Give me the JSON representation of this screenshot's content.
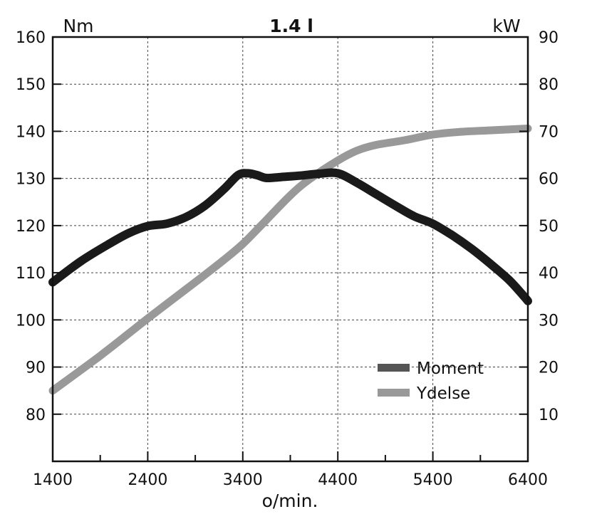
{
  "chart_data": {
    "type": "line",
    "title": "1.4 l",
    "xlabel": "o/min.",
    "ylabel_left": "Nm",
    "ylabel_right": "kW",
    "xlim": [
      1400,
      6400
    ],
    "ylim_left": [
      70,
      160
    ],
    "ylim_right": [
      0,
      90
    ],
    "x_ticks": [
      1400,
      2400,
      3400,
      4400,
      5400,
      6400
    ],
    "x_minor_ticks": [
      1900,
      2900,
      3900,
      4900,
      5900
    ],
    "y_ticks_left": [
      80,
      90,
      100,
      110,
      120,
      130,
      140,
      150,
      160
    ],
    "y_ticks_right": [
      10,
      20,
      30,
      40,
      50,
      60,
      70,
      80,
      90
    ],
    "grid": true,
    "legend_position": "lower-right",
    "series": [
      {
        "name": "Moment",
        "axis": "left",
        "color": "#1a1a1a",
        "legend_color": "#555555",
        "points": [
          [
            1400,
            108
          ],
          [
            1700,
            112.5
          ],
          [
            2000,
            116.2
          ],
          [
            2200,
            118.4
          ],
          [
            2400,
            119.9
          ],
          [
            2600,
            120.4
          ],
          [
            2800,
            121.8
          ],
          [
            3000,
            124.2
          ],
          [
            3200,
            127.7
          ],
          [
            3350,
            130.7
          ],
          [
            3450,
            131.1
          ],
          [
            3550,
            130.7
          ],
          [
            3650,
            130.1
          ],
          [
            3800,
            130.3
          ],
          [
            4000,
            130.6
          ],
          [
            4200,
            131.0
          ],
          [
            4400,
            131.1
          ],
          [
            4600,
            129.1
          ],
          [
            4800,
            126.7
          ],
          [
            5000,
            124.3
          ],
          [
            5200,
            122.0
          ],
          [
            5400,
            120.4
          ],
          [
            5600,
            118.0
          ],
          [
            5800,
            115.2
          ],
          [
            6000,
            112.0
          ],
          [
            6200,
            108.5
          ],
          [
            6350,
            105.2
          ],
          [
            6400,
            104
          ]
        ]
      },
      {
        "name": "Ydelse",
        "axis": "right",
        "color": "#999999",
        "legend_color": "#999999",
        "points": [
          [
            1400,
            15
          ],
          [
            1900,
            22.4
          ],
          [
            2400,
            30.3
          ],
          [
            2900,
            38.0
          ],
          [
            3200,
            42.7
          ],
          [
            3400,
            46.1
          ],
          [
            3600,
            50.2
          ],
          [
            3900,
            56.4
          ],
          [
            4100,
            59.8
          ],
          [
            4400,
            63.8
          ],
          [
            4600,
            65.9
          ],
          [
            4800,
            67.1
          ],
          [
            5100,
            68.1
          ],
          [
            5400,
            69.3
          ],
          [
            5700,
            69.9
          ],
          [
            6000,
            70.2
          ],
          [
            6400,
            70.6
          ]
        ]
      }
    ]
  }
}
